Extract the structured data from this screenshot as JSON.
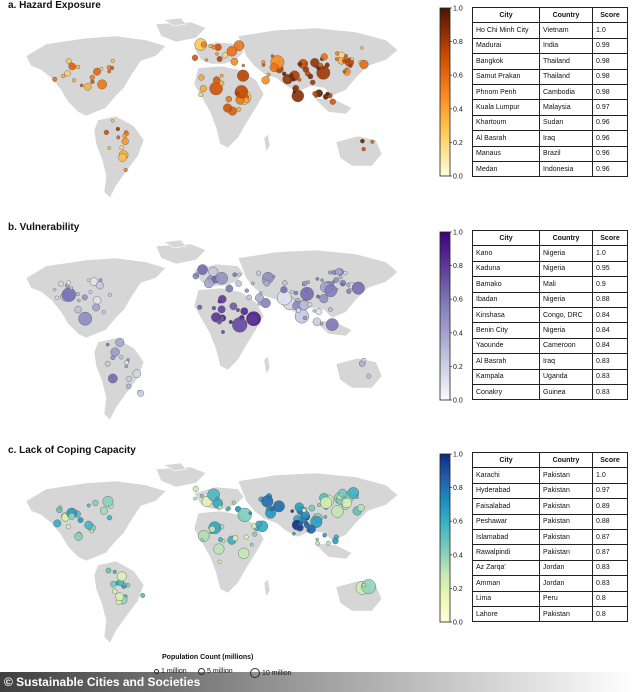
{
  "chart_data": [
    {
      "type": "table",
      "title": "a. Hazard Exposure",
      "colormap": [
        "#fffde0",
        "#fee391",
        "#fec44f",
        "#fe9929",
        "#ec7014",
        "#cc4c02",
        "#8c2d04",
        "#4a1502"
      ],
      "colorbar_ticks": [
        "0.0",
        "0.2",
        "0.4",
        "0.6",
        "0.8",
        "1.0"
      ],
      "headers": [
        "City",
        "Country",
        "Score"
      ],
      "rows": [
        [
          "Ho Chi Minh City",
          "Vietnam",
          "1.0"
        ],
        [
          "Madurai",
          "India",
          "0.99"
        ],
        [
          "Bangkok",
          "Thailand",
          "0.98"
        ],
        [
          "Samut Prakan",
          "Thailand",
          "0.98"
        ],
        [
          "Phnom Penh",
          "Cambodia",
          "0.98"
        ],
        [
          "Kuala Lumpur",
          "Malaysia",
          "0.97"
        ],
        [
          "Khartoum",
          "Sudan",
          "0.96"
        ],
        [
          "Al Basrah",
          "Iraq",
          "0.96"
        ],
        [
          "Manaus",
          "Brazil",
          "0.96"
        ],
        [
          "Medan",
          "Indonesia",
          "0.96"
        ]
      ]
    },
    {
      "type": "table",
      "title": "b. Vulnerability",
      "colormap": [
        "#fcfbfd",
        "#dadaeb",
        "#bcbddc",
        "#9e9ac8",
        "#807dba",
        "#6a51a3",
        "#54278f",
        "#3f007d"
      ],
      "colorbar_ticks": [
        "0.0",
        "0.2",
        "0.4",
        "0.6",
        "0.8",
        "1.0"
      ],
      "headers": [
        "City",
        "Country",
        "Score"
      ],
      "rows": [
        [
          "Kano",
          "Nigeria",
          "1.0"
        ],
        [
          "Kaduna",
          "Nigeria",
          "0.95"
        ],
        [
          "Bamako",
          "Mali",
          "0.9"
        ],
        [
          "Ibadan",
          "Nigeria",
          "0.88"
        ],
        [
          "Kinshasa",
          "Congo, DRC",
          "0.84"
        ],
        [
          "Benin City",
          "Nigeria",
          "0.84"
        ],
        [
          "Yaounde",
          "Cameroon",
          "0.84"
        ],
        [
          "Al Basrah",
          "Iraq",
          "0.83"
        ],
        [
          "Kampala",
          "Uganda",
          "0.83"
        ],
        [
          "Conakry",
          "Guinea",
          "0.83"
        ]
      ]
    },
    {
      "type": "table",
      "title": "c. Lack of Coping Capacity",
      "colormap": [
        "#ffffd9",
        "#edf8b1",
        "#c7e9b4",
        "#7fcdbb",
        "#41b6c4",
        "#1d91c0",
        "#225ea8",
        "#0c2c84"
      ],
      "colorbar_ticks": [
        "0.0",
        "0.2",
        "0.4",
        "0.6",
        "0.8",
        "1.0"
      ],
      "headers": [
        "City",
        "Country",
        "Score"
      ],
      "rows": [
        [
          "Karachi",
          "Pakistan",
          "1.0"
        ],
        [
          "Hyderabad",
          "Pakistan",
          "0.97"
        ],
        [
          "Faisalabad",
          "Pakistan",
          "0.89"
        ],
        [
          "Peshawar",
          "Pakistan",
          "0.88"
        ],
        [
          "Islamabad",
          "Pakistan",
          "0.87"
        ],
        [
          "Rawalpindi",
          "Pakistan",
          "0.87"
        ],
        [
          "Az Zarqa'",
          "Jordan",
          "0.83"
        ],
        [
          "Amman",
          "Jordan",
          "0.83"
        ],
        [
          "Lima",
          "Peru",
          "0.8"
        ],
        [
          "Lahore",
          "Pakistan",
          "0.8"
        ]
      ]
    }
  ],
  "legend": {
    "title": "Population Count (millions)",
    "items": [
      "1 million",
      "5 million",
      "10 million"
    ]
  },
  "credit": "© Sustainable Cities and Societies",
  "map_color": "#d6d6d6"
}
